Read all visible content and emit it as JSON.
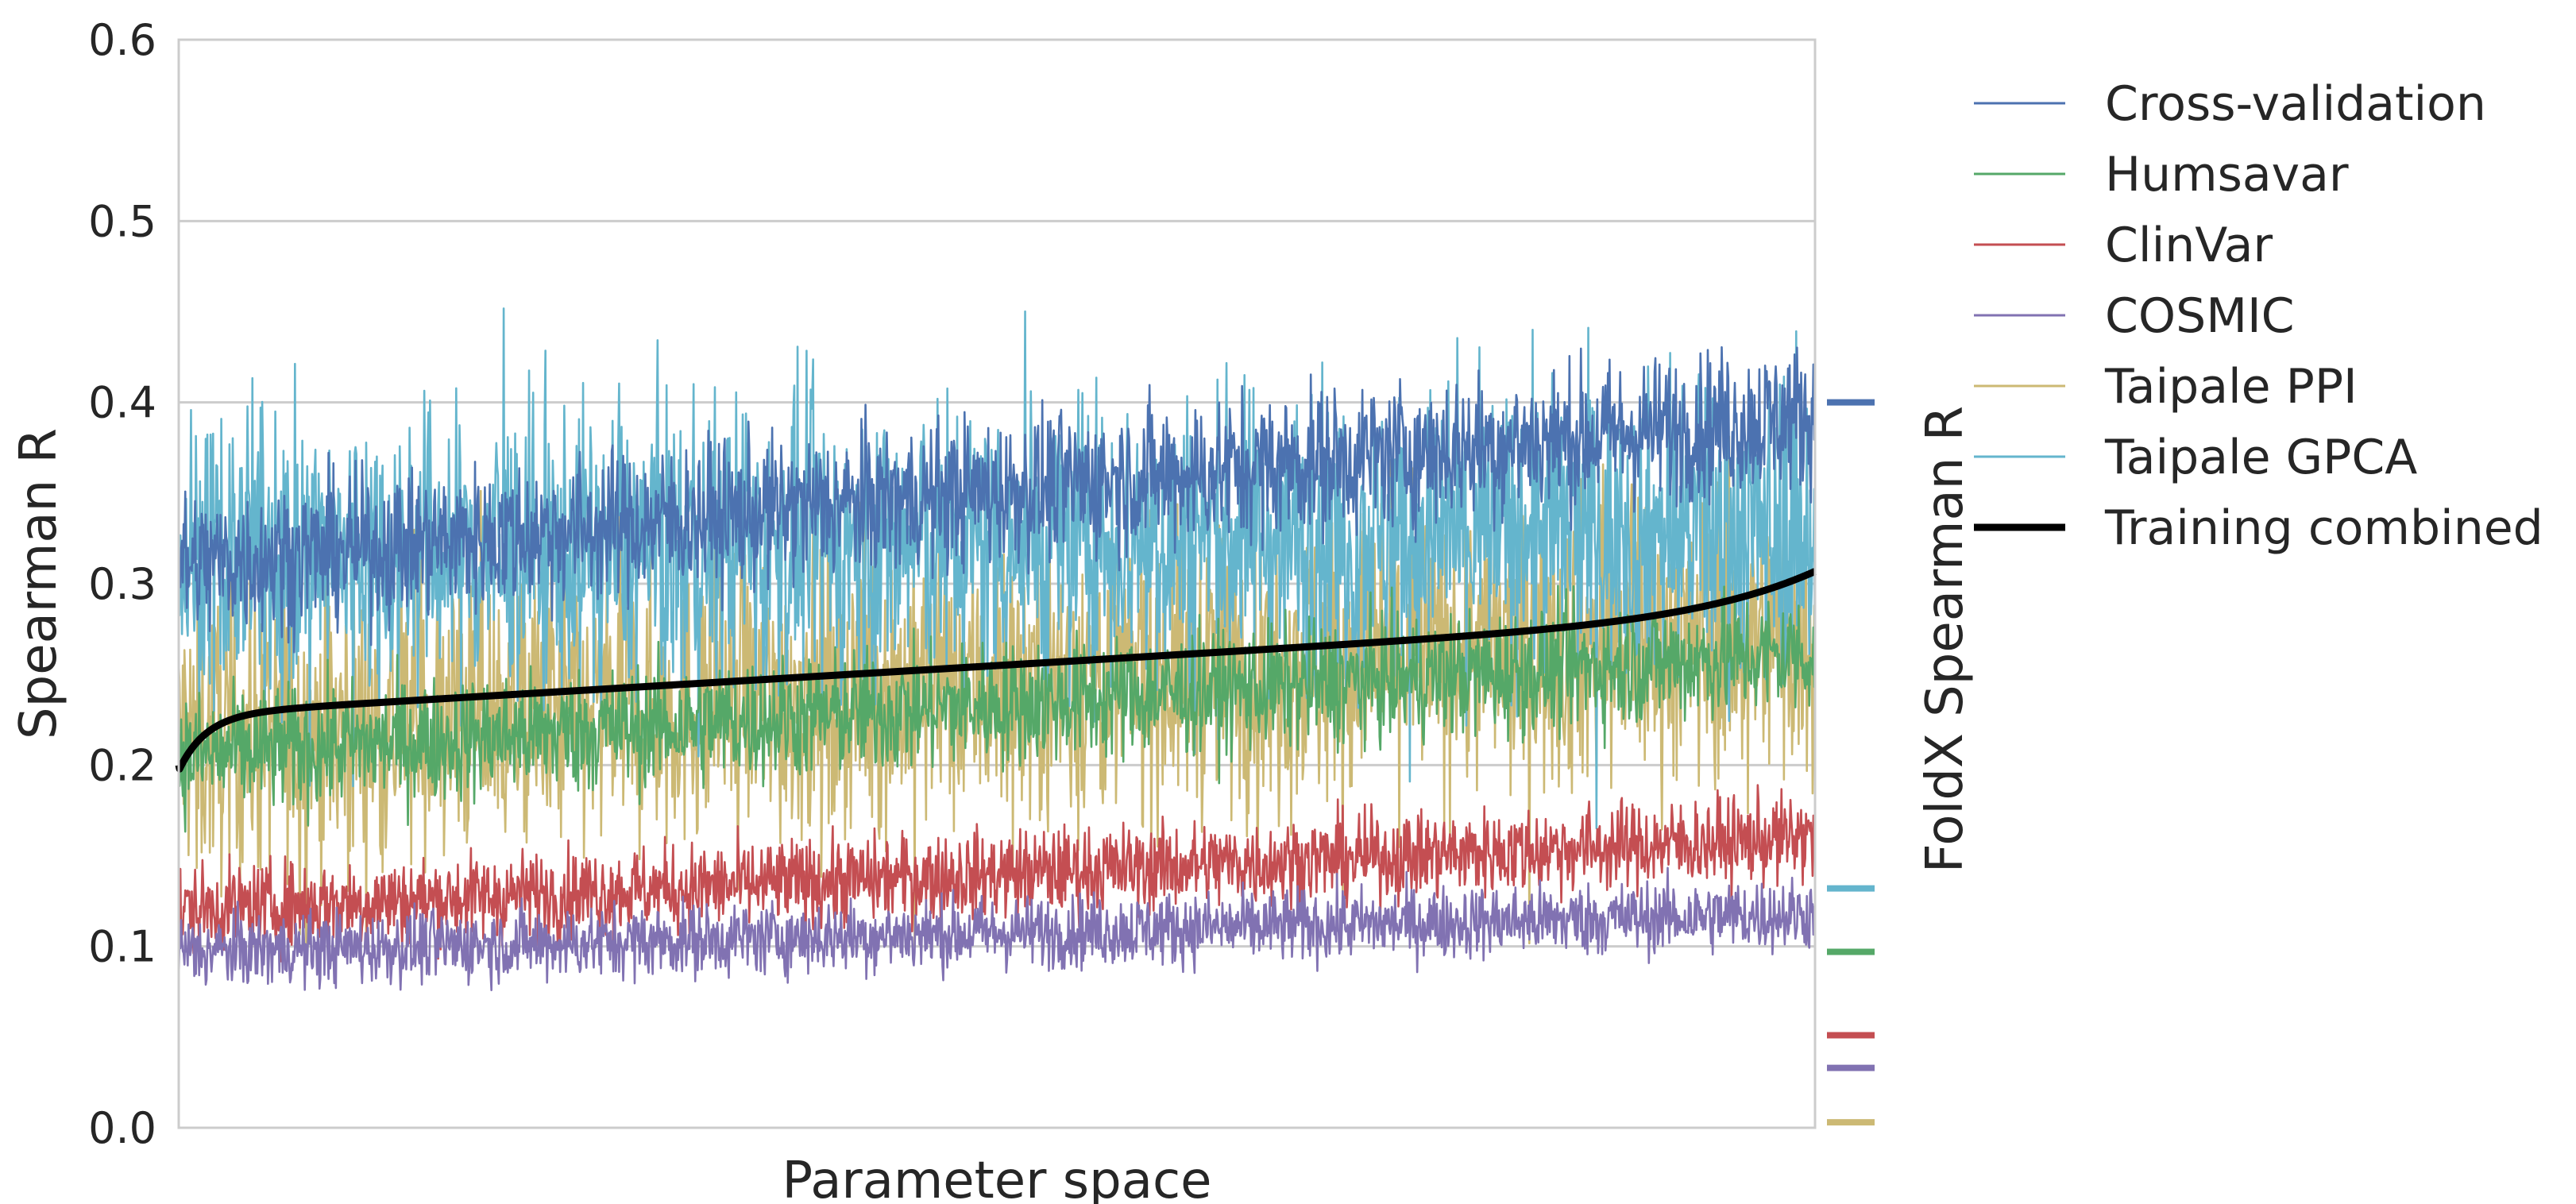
{
  "chart_data": {
    "type": "line",
    "xlabel": "Parameter space",
    "ylabel": "Spearman R",
    "ylabel_right": "FoldX Spearman R",
    "ylim": [
      0.0,
      0.6
    ],
    "yticks": [
      "0.0",
      "0.1",
      "0.2",
      "0.3",
      "0.4",
      "0.5",
      "0.6"
    ],
    "grid": true,
    "legend_position": "right-outside-top",
    "n_points": 2000,
    "series": [
      {
        "name": "Cross-validation",
        "color": "#4c72b0",
        "start": 0.31,
        "end": 0.393,
        "noise": 0.02,
        "foldx": 0.4
      },
      {
        "name": "Humsavar",
        "color": "#55a868",
        "start": 0.205,
        "end": 0.262,
        "noise": 0.017,
        "foldx": 0.097
      },
      {
        "name": "ClinVar",
        "color": "#c44e52",
        "start": 0.12,
        "end": 0.16,
        "noise": 0.012,
        "foldx": 0.051
      },
      {
        "name": "COSMIC",
        "color": "#8172b2",
        "start": 0.097,
        "end": 0.118,
        "noise": 0.01,
        "foldx": 0.033
      },
      {
        "name": "Taipale PPI",
        "color": "#ccb974",
        "start": 0.215,
        "end": 0.275,
        "noise": 0.04,
        "foldx": 0.003
      },
      {
        "name": "Taipale GPCA",
        "color": "#64b5cd",
        "start": 0.315,
        "end": 0.33,
        "noise": 0.04,
        "foldx": 0.132
      },
      {
        "name": "Training combined",
        "color": "#000000",
        "start": 0.2,
        "end": 0.293,
        "noise": 0,
        "foldx": null
      }
    ]
  }
}
